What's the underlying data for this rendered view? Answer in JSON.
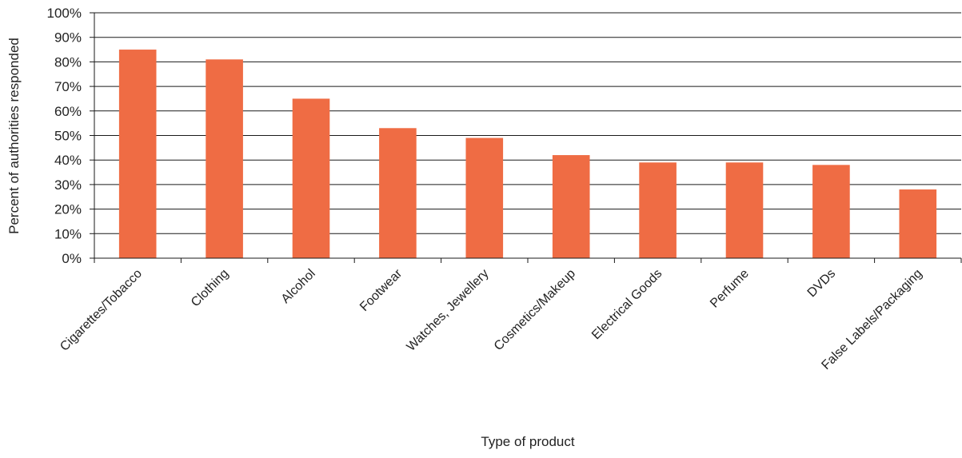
{
  "chart_data": {
    "type": "bar",
    "categories": [
      "Cigarettes/Tobacco",
      "Clothing",
      "Alcohol",
      "Footwear",
      "Watches, Jewellery",
      "Cosmetics/Makeup",
      "Electrical Goods",
      "Perfume",
      "DVDs",
      "False Labels/Packaging"
    ],
    "values": [
      85,
      81,
      65,
      53,
      49,
      42,
      39,
      39,
      38,
      28
    ],
    "value_unit": "%",
    "title": "",
    "xlabel": "Type of product",
    "ylabel": "Percent of authorities responded",
    "ylim": [
      0,
      100
    ],
    "yticks": [
      "0%",
      "10%",
      "20%",
      "30%",
      "40%",
      "50%",
      "60%",
      "70%",
      "80%",
      "90%",
      "100%"
    ],
    "grid": true,
    "legend": "none",
    "bar_color": "#ef6c44"
  }
}
